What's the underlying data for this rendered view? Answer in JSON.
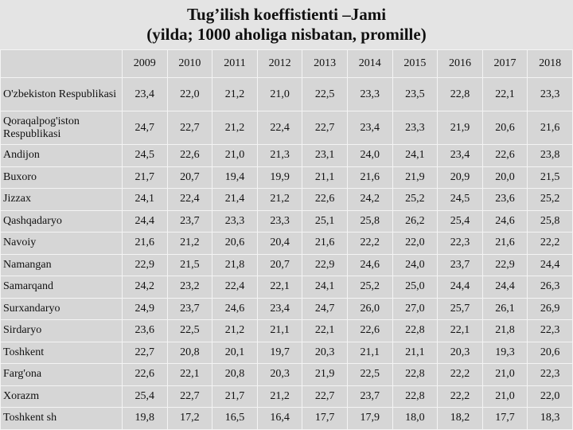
{
  "title": {
    "line1": "Tug’ilish koeffistienti –Jami",
    "line2": "(yilda; 1000 aholiga nisbatan, promille)"
  },
  "table": {
    "years": [
      "2009",
      "2010",
      "2011",
      "2012",
      "2013",
      "2014",
      "2015",
      "2016",
      "2017",
      "2018"
    ],
    "rows": [
      [
        "O'zbekiston Respublikasi",
        "23,4",
        "22,0",
        "21,2",
        "21,0",
        "22,5",
        "23,3",
        "23,5",
        "22,8",
        "22,1",
        "23,3"
      ],
      [
        "Qoraqalpog'iston Respublikasi",
        "24,7",
        "22,7",
        "21,2",
        "22,4",
        "22,7",
        "23,4",
        "23,3",
        "21,9",
        "20,6",
        "21,6"
      ],
      [
        "Andijon",
        "24,5",
        "22,6",
        "21,0",
        "21,3",
        "23,1",
        "24,0",
        "24,1",
        "23,4",
        "22,6",
        "23,8"
      ],
      [
        "Buxoro",
        "21,7",
        "20,7",
        "19,4",
        "19,9",
        "21,1",
        "21,6",
        "21,9",
        "20,9",
        "20,0",
        "21,5"
      ],
      [
        "Jizzax",
        "24,1",
        "22,4",
        "21,4",
        "21,2",
        "22,6",
        "24,2",
        "25,2",
        "24,5",
        "23,6",
        "25,2"
      ],
      [
        "Qashqadaryo",
        "24,4",
        "23,7",
        "23,3",
        "23,3",
        "25,1",
        "25,8",
        "26,2",
        "25,4",
        "24,6",
        "25,8"
      ],
      [
        "Navoiy",
        "21,6",
        "21,2",
        "20,6",
        "20,4",
        "21,6",
        "22,2",
        "22,0",
        "22,3",
        "21,6",
        "22,2"
      ],
      [
        "Namangan",
        "22,9",
        "21,5",
        "21,8",
        "20,7",
        "22,9",
        "24,6",
        "24,0",
        "23,7",
        "22,9",
        "24,4"
      ],
      [
        "Samarqand",
        "24,2",
        "23,2",
        "22,4",
        "22,1",
        "24,1",
        "25,2",
        "25,0",
        "24,4",
        "24,4",
        "26,3"
      ],
      [
        "Surxandaryo",
        "24,9",
        "23,7",
        "24,6",
        "23,4",
        "24,7",
        "26,0",
        "27,0",
        "25,7",
        "26,1",
        "26,9"
      ],
      [
        "Sirdaryo",
        "23,6",
        "22,5",
        "21,2",
        "21,1",
        "22,1",
        "22,6",
        "22,8",
        "22,1",
        "21,8",
        "22,3"
      ],
      [
        "Toshkent",
        "22,7",
        "20,8",
        "20,1",
        "19,7",
        "20,3",
        "21,1",
        "21,1",
        "20,3",
        "19,3",
        "20,6"
      ],
      [
        "Farg'ona",
        "22,6",
        "22,1",
        "20,8",
        "20,3",
        "21,9",
        "22,5",
        "22,8",
        "22,2",
        "21,0",
        "22,3"
      ],
      [
        "Xorazm",
        "25,4",
        "22,7",
        "21,7",
        "21,2",
        "22,7",
        "23,7",
        "22,8",
        "22,2",
        "21,0",
        "22,0"
      ],
      [
        "Toshkent sh",
        "19,8",
        "17,2",
        "16,5",
        "16,4",
        "17,7",
        "17,9",
        "18,0",
        "18,2",
        "17,7",
        "18,3"
      ]
    ]
  }
}
